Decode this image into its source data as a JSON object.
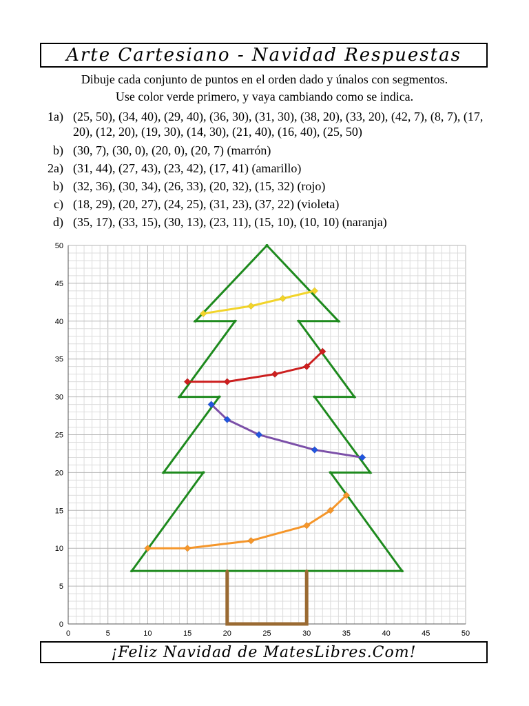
{
  "title": "Arte Cartesiano - Navidad Respuestas",
  "instructions": {
    "line1": "Dibuje cada conjunto de puntos en el orden dado y únalos con segmentos.",
    "line2": "Use color verde primero, y vaya cambiando como se indica."
  },
  "problems": [
    {
      "label": "1a)",
      "text": "(25, 50), (34, 40), (29, 40), (36, 30), (31, 30), (38, 20), (33, 20), (42, 7), (8, 7), (17, 20), (12, 20), (19, 30), (14, 30), (21, 40), (16, 40), (25, 50)"
    },
    {
      "label": "b)",
      "text": "(30, 7), (30, 0), (20, 0), (20, 7)  (marrón)"
    },
    {
      "label": "2a)",
      "text": "(31, 44), (27, 43), (23, 42), (17, 41)  (amarillo)"
    },
    {
      "label": "b)",
      "text": "(32, 36), (30, 34), (26, 33), (20, 32), (15, 32)  (rojo)"
    },
    {
      "label": "c)",
      "text": "(18, 29), (20, 27), (24, 25), (31, 23), (37, 22)  (violeta)"
    },
    {
      "label": "d)",
      "text": "(35, 17), (33, 15), (30, 13), (23, 11), (15, 10), (10, 10)  (naranja)"
    }
  ],
  "footer": "¡Feliz Navidad de MatesLibres.Com!",
  "chart_data": {
    "type": "line",
    "xlim": [
      0,
      50
    ],
    "ylim": [
      0,
      50
    ],
    "x_ticks": [
      0,
      5,
      10,
      15,
      20,
      25,
      30,
      35,
      40,
      45,
      50
    ],
    "y_ticks": [
      0,
      5,
      10,
      15,
      20,
      25,
      30,
      35,
      40,
      45,
      50
    ],
    "grid": true,
    "series": [
      {
        "color": "#1e8a1e",
        "markers": false,
        "points": [
          [
            25,
            50
          ],
          [
            34,
            40
          ],
          [
            29,
            40
          ],
          [
            36,
            30
          ],
          [
            31,
            30
          ],
          [
            38,
            20
          ],
          [
            33,
            20
          ],
          [
            42,
            7
          ],
          [
            8,
            7
          ],
          [
            17,
            20
          ],
          [
            12,
            20
          ],
          [
            19,
            30
          ],
          [
            14,
            30
          ],
          [
            21,
            40
          ],
          [
            16,
            40
          ],
          [
            25,
            50
          ]
        ]
      },
      {
        "color": "#9a6a32",
        "markers": false,
        "points": [
          [
            30,
            7
          ],
          [
            30,
            0
          ],
          [
            20,
            0
          ],
          [
            20,
            7
          ]
        ]
      },
      {
        "color": "#f2d42a",
        "markers": true,
        "points": [
          [
            31,
            44
          ],
          [
            27,
            43
          ],
          [
            23,
            42
          ],
          [
            17,
            41
          ]
        ]
      },
      {
        "color": "#cc1f1f",
        "markers": true,
        "points": [
          [
            32,
            36
          ],
          [
            30,
            34
          ],
          [
            26,
            33
          ],
          [
            20,
            32
          ],
          [
            15,
            32
          ]
        ]
      },
      {
        "color": "#7b4fa8",
        "markers": true,
        "marker_color": "#2255dd",
        "points": [
          [
            18,
            29
          ],
          [
            20,
            27
          ],
          [
            24,
            25
          ],
          [
            31,
            23
          ],
          [
            37,
            22
          ]
        ]
      },
      {
        "color": "#f5962a",
        "markers": true,
        "points": [
          [
            35,
            17
          ],
          [
            33,
            15
          ],
          [
            30,
            13
          ],
          [
            23,
            11
          ],
          [
            15,
            10
          ],
          [
            10,
            10
          ]
        ]
      }
    ]
  }
}
